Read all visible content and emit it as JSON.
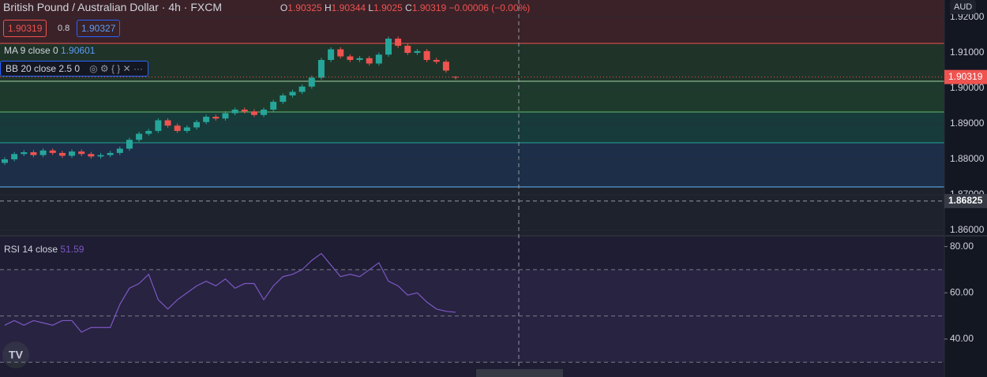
{
  "toolbar": {
    "symbol": "British Pound / Australian Dollar",
    "interval": "4h",
    "source": "FXCM",
    "ohlc_labels": [
      "O",
      "H",
      "L",
      "C"
    ],
    "change": "−0.00006 (−0.00%)",
    "spread": 0.8,
    "buy": 1.90327,
    "ma_label": "MA 9 close 0",
    "ma_value": 1.90601,
    "bb_label": "BB 20 close 2.5 0",
    "currency": "AUD"
  },
  "chart_data": [
    {
      "type": "candlestick",
      "open": [
        1.879,
        1.88,
        1.8815,
        1.882,
        1.8812,
        1.8825,
        1.8818,
        1.881,
        1.8822,
        1.8815,
        1.8808,
        1.8812,
        1.8818,
        1.883,
        1.8855,
        1.8872,
        1.888,
        1.891,
        1.8895,
        1.888,
        1.889,
        1.8905,
        1.892,
        1.8915,
        1.893,
        1.894,
        1.8935,
        1.8925,
        1.894,
        1.8962,
        1.898,
        1.899,
        1.9005,
        1.903,
        1.908,
        1.911,
        1.909,
        1.908,
        1.9085,
        1.907,
        1.9095,
        1.914,
        1.912,
        1.91,
        1.9105,
        1.908,
        1.9075,
        1.90325
      ],
      "high": [
        1.8806,
        1.8821,
        1.8826,
        1.8826,
        1.8831,
        1.8831,
        1.8824,
        1.8828,
        1.8828,
        1.8821,
        1.8818,
        1.8824,
        1.8836,
        1.8861,
        1.8878,
        1.8886,
        1.8916,
        1.8916,
        1.8901,
        1.8896,
        1.8911,
        1.8926,
        1.8926,
        1.8936,
        1.8946,
        1.8946,
        1.8941,
        1.8946,
        1.8968,
        1.8986,
        1.8996,
        1.9011,
        1.9036,
        1.9086,
        1.9116,
        1.9116,
        1.9096,
        1.9091,
        1.9091,
        1.9101,
        1.9146,
        1.9146,
        1.9126,
        1.9111,
        1.9111,
        1.9086,
        1.9081,
        1.90344
      ],
      "low": [
        1.8784,
        1.8794,
        1.8809,
        1.8806,
        1.8806,
        1.8812,
        1.8804,
        1.8804,
        1.8809,
        1.8802,
        1.8802,
        1.8806,
        1.8812,
        1.8824,
        1.8849,
        1.8866,
        1.8874,
        1.8889,
        1.8874,
        1.8874,
        1.8884,
        1.8899,
        1.8909,
        1.8909,
        1.8924,
        1.8929,
        1.8919,
        1.8919,
        1.8934,
        1.8956,
        1.8974,
        1.8984,
        1.8999,
        1.9024,
        1.9074,
        1.9084,
        1.9074,
        1.9074,
        1.9064,
        1.9064,
        1.9089,
        1.9114,
        1.9094,
        1.9094,
        1.9074,
        1.9069,
        1.9044,
        1.9025
      ],
      "close": [
        1.88,
        1.8815,
        1.882,
        1.8812,
        1.8825,
        1.8818,
        1.881,
        1.8822,
        1.8815,
        1.8808,
        1.8812,
        1.8818,
        1.883,
        1.8855,
        1.8872,
        1.888,
        1.891,
        1.8895,
        1.888,
        1.889,
        1.8905,
        1.892,
        1.8915,
        1.893,
        1.894,
        1.8935,
        1.8925,
        1.894,
        1.8962,
        1.898,
        1.899,
        1.9005,
        1.903,
        1.908,
        1.911,
        1.909,
        1.908,
        1.9085,
        1.907,
        1.9095,
        1.914,
        1.912,
        1.91,
        1.9105,
        1.908,
        1.9075,
        1.905,
        1.90319
      ],
      "up_color": "#26a69a",
      "down_color": "#ef5350",
      "ylim": [
        1.85867,
        1.92489
      ],
      "yticks": [
        {
          "value": 1.86,
          "label": "1.86000"
        },
        {
          "value": 1.87,
          "label": "1.87000"
        },
        {
          "value": 1.88,
          "label": "1.88000"
        },
        {
          "value": 1.89,
          "label": "1.89000"
        },
        {
          "value": 1.9,
          "label": "1.90000"
        },
        {
          "value": 1.91,
          "label": "1.91000"
        },
        {
          "value": 1.92,
          "label": "1.92000"
        }
      ],
      "crosshair_price": 1.86825
    },
    {
      "type": "line",
      "title": "RSI 14 close",
      "color": "#7e57c2",
      "values": [
        46,
        48,
        46,
        48,
        47,
        46,
        48,
        48,
        43,
        45,
        45,
        45,
        55,
        62,
        64,
        68,
        57,
        53,
        57,
        60,
        63,
        65,
        63,
        66,
        62,
        64,
        64,
        57,
        63,
        67,
        68,
        70,
        74,
        77,
        72,
        67,
        68,
        67,
        70,
        73,
        65,
        63,
        59,
        60,
        56,
        53,
        52,
        51.59
      ],
      "ylim": [
        23.6,
        84.3
      ],
      "yticks": [
        {
          "value": 40,
          "label": "40.00"
        },
        {
          "value": 60,
          "label": "60.00"
        },
        {
          "value": 80,
          "label": "80.00"
        }
      ],
      "bands": [
        70,
        50,
        30
      ]
    }
  ]
}
